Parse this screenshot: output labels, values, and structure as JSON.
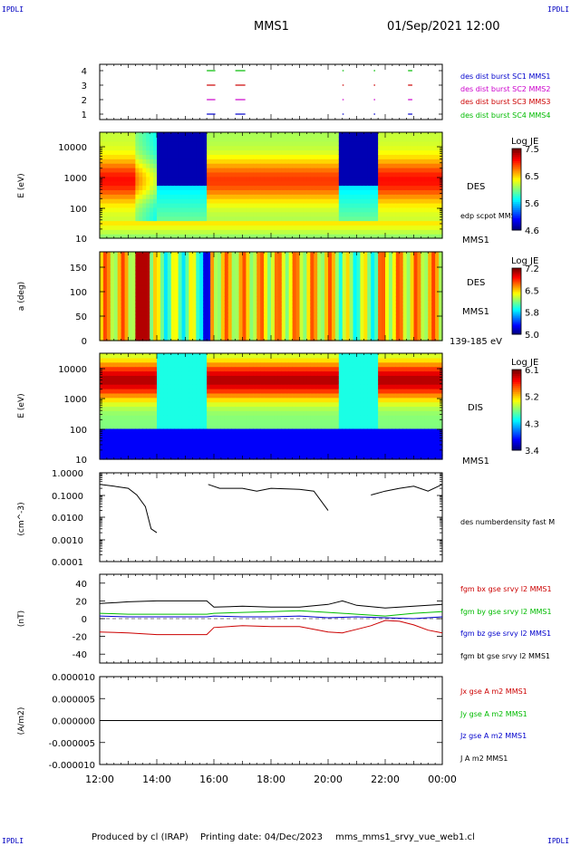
{
  "corners": {
    "top_left": "IPDLI",
    "top_right": "IPDLI",
    "bottom_left": "IPDLI",
    "bottom_right": "IPDLI"
  },
  "header": {
    "spacecraft": "MMS1",
    "datetime": "01/Sep/2021 12:00"
  },
  "footer": {
    "produced_by": "Produced by cl (IRAP)",
    "printing_date": "Printing date: 04/Dec/2023",
    "filename": "mms_mms1_srvy_vue_web1.cl"
  },
  "time_axis": {
    "tick_labels": [
      "12:00",
      "14:00",
      "16:00",
      "18:00",
      "20:00",
      "22:00",
      "00:00"
    ]
  },
  "chart_data": [
    {
      "type": "scatter",
      "id": "burst",
      "yticks": [
        "1",
        "2",
        "3",
        "4"
      ],
      "legend": [
        {
          "label": "des dist burst SC1 MMS1",
          "color": "#0000cc"
        },
        {
          "label": "des dist burst SC2 MMS2",
          "color": "#cc00cc"
        },
        {
          "label": "des dist burst SC3 MMS3",
          "color": "#cc0000"
        },
        {
          "label": "des dist burst SC4 MMS4",
          "color": "#00bb00"
        }
      ],
      "intervals_hours": [
        [
          15.75,
          16.05
        ],
        [
          16.75,
          17.1
        ],
        [
          20.5,
          20.55
        ],
        [
          21.6,
          21.65
        ],
        [
          22.8,
          22.95
        ]
      ]
    },
    {
      "type": "heatmap",
      "id": "des-energy",
      "ylabel": "E (eV)",
      "ytick_labels": [
        "10",
        "100",
        "1000",
        "10000"
      ],
      "label": "DES",
      "sublabel": "edp scpot MMS1",
      "spacecraft": "MMS1",
      "colorbar": {
        "title": "Log JE",
        "ticks": [
          "4.6",
          "5.6",
          "6.5",
          "7.5"
        ]
      }
    },
    {
      "type": "heatmap",
      "id": "des-pitch",
      "ylabel": "a (deg)",
      "ytick_labels": [
        "0",
        "50",
        "100",
        "150"
      ],
      "label": "DES",
      "spacecraft": "MMS1",
      "energy_range": "139-185 eV",
      "colorbar": {
        "title": "Log JE",
        "ticks": [
          "5.0",
          "5.8",
          "6.5",
          "7.2"
        ]
      }
    },
    {
      "type": "heatmap",
      "id": "dis-energy",
      "ylabel": "E (eV)",
      "ytick_labels": [
        "10",
        "100",
        "1000",
        "10000"
      ],
      "label": "DIS",
      "spacecraft": "MMS1",
      "colorbar": {
        "title": "Log JE",
        "ticks": [
          "3.4",
          "4.3",
          "5.2",
          "6.1"
        ]
      }
    },
    {
      "type": "line",
      "id": "density",
      "ylabel": "(cm^-3)",
      "ytick_labels": [
        "0.0001",
        "0.0010",
        "0.0100",
        "0.1000",
        "1.0000"
      ],
      "series": [
        {
          "name": "des numberdensity fast M",
          "color": "#000000",
          "x": [
            12.0,
            12.5,
            13.0,
            13.3,
            13.6,
            13.8,
            14.0,
            14.5,
            15.0,
            15.5,
            15.8,
            16.2,
            17.0,
            17.5,
            18.0,
            19.0,
            19.5,
            20.0,
            20.5,
            21.0,
            21.5,
            22.0,
            22.5,
            23.0,
            23.5,
            24.0
          ],
          "y": [
            0.3,
            0.25,
            0.2,
            0.1,
            0.03,
            0.003,
            0.002,
            null,
            null,
            null,
            0.3,
            0.2,
            0.2,
            0.15,
            0.2,
            0.18,
            0.15,
            0.02,
            null,
            null,
            0.1,
            0.15,
            0.2,
            0.25,
            0.15,
            0.3
          ]
        }
      ]
    },
    {
      "type": "line",
      "id": "magnetic-field",
      "ylabel": "(nT)",
      "ytick_labels": [
        "-40",
        "-20",
        "0",
        "20",
        "40"
      ],
      "ylim": [
        -50,
        50
      ],
      "series": [
        {
          "name": "fgm bx gse srvy l2 MMS1",
          "color": "#cc0000",
          "x": [
            12.0,
            13.0,
            14.0,
            15.0,
            15.75,
            16.0,
            17.0,
            18.0,
            19.0,
            20.0,
            20.5,
            21.0,
            21.5,
            22.0,
            22.5,
            23.0,
            23.5,
            24.0
          ],
          "y": [
            -15,
            -16,
            -18,
            -18,
            -18,
            -10,
            -8,
            -9,
            -9,
            -15,
            -16,
            -12,
            -8,
            -2,
            -3,
            -7,
            -13,
            -16
          ]
        },
        {
          "name": "fgm by gse srvy l2 MMS1",
          "color": "#00bb00",
          "x": [
            12.0,
            13.0,
            14.0,
            15.0,
            15.75,
            16.0,
            17.0,
            18.0,
            19.0,
            20.0,
            21.0,
            22.0,
            23.0,
            24.0
          ],
          "y": [
            6,
            5,
            5,
            5,
            5,
            6,
            7,
            8,
            9,
            7,
            5,
            3,
            6,
            8
          ]
        },
        {
          "name": "fgm bz gse srvy l2 MMS1",
          "color": "#0000cc",
          "x": [
            12.0,
            13.0,
            14.0,
            15.0,
            15.75,
            16.0,
            17.0,
            18.0,
            19.0,
            20.0,
            21.0,
            22.0,
            23.0,
            24.0
          ],
          "y": [
            3,
            2,
            2,
            2,
            2,
            3,
            2,
            2,
            3,
            1,
            2,
            1,
            0,
            2
          ]
        },
        {
          "name": "fgm bt gse srvy l2 MMS1",
          "color": "#000000",
          "x": [
            12.0,
            12.5,
            13.0,
            14.0,
            15.0,
            15.75,
            16.0,
            17.0,
            18.0,
            19.0,
            20.0,
            20.5,
            21.0,
            22.0,
            22.5,
            23.0,
            23.5,
            24.0
          ],
          "y": [
            17,
            18,
            19,
            20,
            20,
            20,
            13,
            14,
            13,
            13,
            16,
            20,
            15,
            12,
            13,
            14,
            15,
            16
          ]
        }
      ]
    },
    {
      "type": "line",
      "id": "current-density",
      "ylabel": "(A/m2)",
      "ytick_labels": [
        "-0.000010",
        "-0.000005",
        "0.000000",
        "0.000005",
        "0.000010"
      ],
      "ylim": [
        -1e-05,
        1e-05
      ],
      "series": [
        {
          "name": "Jx gse A m2 MMS1",
          "color": "#cc0000",
          "x": [
            12.0,
            24.0
          ],
          "y": [
            0.0,
            0.0
          ]
        },
        {
          "name": "Jy gse A m2 MMS1",
          "color": "#00bb00",
          "x": [
            12.0,
            24.0
          ],
          "y": [
            0.0,
            0.0
          ]
        },
        {
          "name": "Jz gse A m2 MMS1",
          "color": "#0000cc",
          "x": [
            12.0,
            24.0
          ],
          "y": [
            0.0,
            0.0
          ]
        },
        {
          "name": "J A m2 MMS1",
          "color": "#000000",
          "x": [
            12.0,
            24.0
          ],
          "y": [
            0.0,
            0.0
          ]
        }
      ]
    }
  ]
}
